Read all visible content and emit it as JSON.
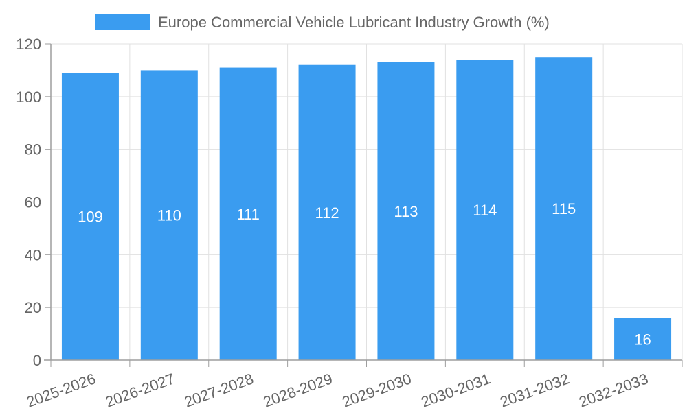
{
  "chart_data": {
    "type": "bar",
    "categories": [
      "2025-2026",
      "2026-2027",
      "2027-2028",
      "2028-2029",
      "2029-2030",
      "2030-2031",
      "2031-2032",
      "2032-2033"
    ],
    "series": [
      {
        "name": "Europe Commercial Vehicle Lubricant Industry Growth (%)",
        "values": [
          109,
          110,
          111,
          112,
          113,
          114,
          115,
          16
        ]
      }
    ],
    "ylim": [
      0,
      120
    ],
    "yticks": [
      0,
      20,
      40,
      60,
      80,
      100,
      120
    ],
    "grid": true,
    "legend_position": "top-center",
    "colors": {
      "bar": "#3a9cf0",
      "grid": "#e1e1e1",
      "axis": "#9e9e9e",
      "tick_text": "#666666",
      "data_label": "#ffffff",
      "legend_text": "#666666"
    }
  }
}
